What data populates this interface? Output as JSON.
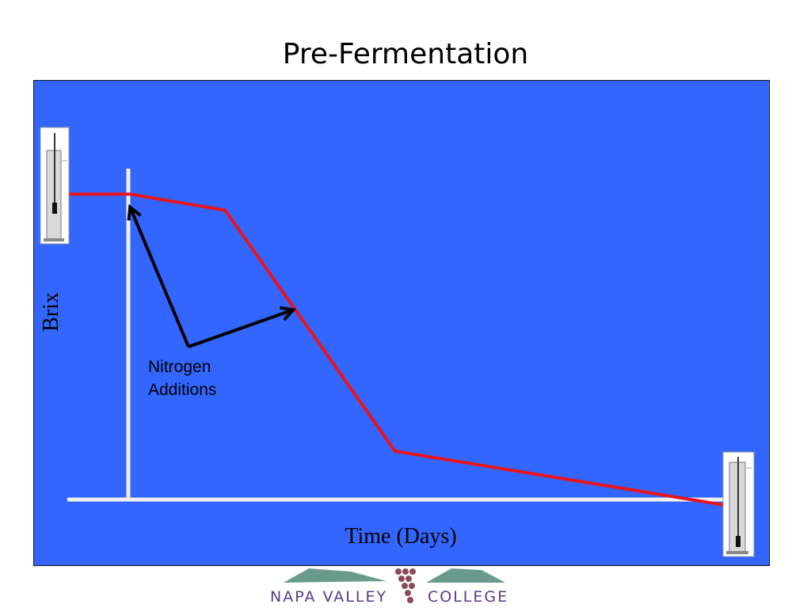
{
  "slide": {
    "title": "Pre-Fermentation"
  },
  "chart_data": {
    "type": "line",
    "title": "Pre-Fermentation",
    "xlabel": "Time (Days)",
    "ylabel": "Brix",
    "x_ticks_shown": false,
    "y_ticks_shown": false,
    "xlim": [
      0,
      100
    ],
    "ylim": [
      -5,
      100
    ],
    "series": [
      {
        "color": "#e8141c",
        "points": [
          [
            0,
            94
          ],
          [
            9,
            94
          ],
          [
            23,
            89
          ],
          [
            48,
            14
          ],
          [
            100,
            -4
          ]
        ]
      }
    ],
    "annotation": {
      "text_line1": "Nitrogen",
      "text_line2": "Additions",
      "arrow_color": "#000000",
      "arrow_targets": [
        [
          9,
          90
        ],
        [
          33,
          58
        ]
      ]
    },
    "axis_color": "#f0f0f0",
    "plot_background": "#3366ff",
    "icons": [
      "hydrometer-full-cylinder-icon",
      "hydrometer-low-cylinder-icon"
    ]
  },
  "footer": {
    "logo_text_left": "NAPA VALLEY",
    "logo_text_right": "COLLEGE"
  }
}
